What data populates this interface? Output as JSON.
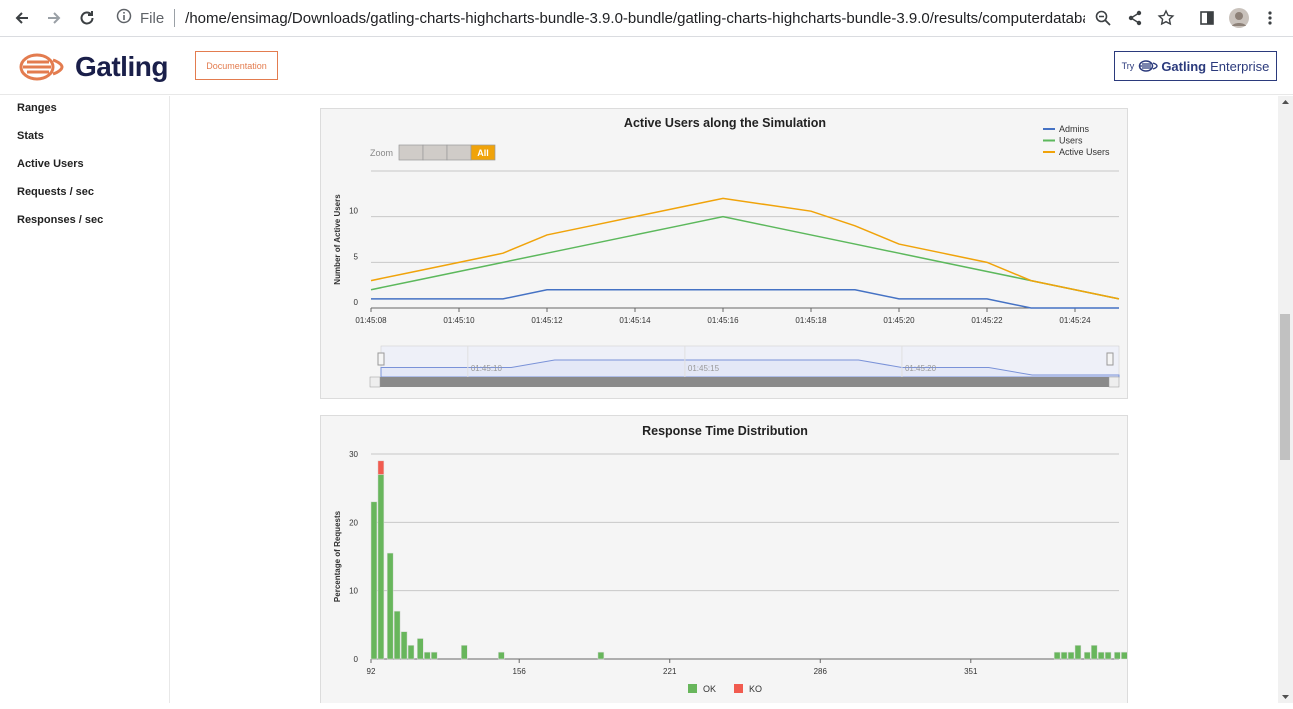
{
  "browser": {
    "file_label": "File",
    "url": "/home/ensimag/Downloads/gatling-charts-highcharts-bundle-3.9.0-bundle/gatling-charts-highcharts-bundle-3.9.0/results/computerdatabase…"
  },
  "header": {
    "logo_text": "Gatling",
    "documentation_label": "Documentation",
    "enterprise_try": "Try",
    "enterprise_brand": "Gatling",
    "enterprise_suffix": "Enterprise"
  },
  "sidebar": {
    "items": [
      {
        "label": "Ranges"
      },
      {
        "label": "Stats"
      },
      {
        "label": "Active Users"
      },
      {
        "label": "Requests / sec"
      },
      {
        "label": "Responses / sec"
      }
    ]
  },
  "zoom": {
    "label": "Zoom",
    "buttons": [
      "",
      "",
      "",
      "All"
    ]
  },
  "chart_data": [
    {
      "type": "line",
      "title": "Active Users along the Simulation",
      "ylabel": "Number of Active Users",
      "xlabel": "",
      "x": [
        "01:45:08",
        "01:45:09",
        "01:45:10",
        "01:45:11",
        "01:45:12",
        "01:45:13",
        "01:45:14",
        "01:45:15",
        "01:45:16",
        "01:45:17",
        "01:45:18",
        "01:45:19",
        "01:45:20",
        "01:45:21",
        "01:45:22",
        "01:45:23",
        "01:45:24",
        "01:45:25"
      ],
      "x_ticks": [
        "01:45:08",
        "01:45:10",
        "01:45:12",
        "01:45:14",
        "01:45:16",
        "01:45:18",
        "01:45:20",
        "01:45:22",
        "01:45:24"
      ],
      "y_ticks": [
        0,
        5,
        10
      ],
      "ylim": [
        0,
        15
      ],
      "series": [
        {
          "name": "Admins",
          "color": "#4572c4",
          "values": [
            1,
            1,
            1,
            1,
            2,
            2,
            2,
            2,
            2,
            2,
            2,
            2,
            1,
            1,
            1,
            0,
            0,
            0
          ]
        },
        {
          "name": "Users",
          "color": "#5cb85c",
          "values": [
            2,
            3,
            4,
            5,
            6,
            7,
            8,
            9,
            10,
            9,
            8,
            7,
            6,
            5,
            4,
            3,
            2,
            1
          ]
        },
        {
          "name": "Active Users",
          "color": "#f0a30a",
          "values": [
            3,
            4,
            5,
            6,
            8,
            9,
            10,
            11,
            12,
            11.3,
            10.6,
            9,
            7,
            6,
            5,
            3,
            2,
            1
          ]
        }
      ],
      "navigator_ticks": [
        "01:45:10",
        "01:45:15",
        "01:45:20"
      ],
      "legend": "top-right",
      "grid": true
    },
    {
      "type": "bar",
      "title": "Response Time Distribution",
      "ylabel": "Percentage of Requests",
      "x_ticks": [
        "92",
        "156",
        "221",
        "286",
        "351"
      ],
      "y_ticks": [
        0,
        10,
        20,
        30
      ],
      "ylim": [
        0,
        30
      ],
      "xlim": [
        92,
        415
      ],
      "series": [
        {
          "name": "OK",
          "color": "#68b65c"
        },
        {
          "name": "KO",
          "color": "#f15b4f"
        }
      ],
      "bars": [
        {
          "x": 92,
          "ok": 23,
          "ko": 0
        },
        {
          "x": 95,
          "ok": 27,
          "ko": 2
        },
        {
          "x": 99,
          "ok": 15.5,
          "ko": 0
        },
        {
          "x": 102,
          "ok": 7,
          "ko": 0
        },
        {
          "x": 105,
          "ok": 4,
          "ko": 0
        },
        {
          "x": 108,
          "ok": 2,
          "ko": 0
        },
        {
          "x": 112,
          "ok": 3,
          "ko": 0
        },
        {
          "x": 115,
          "ok": 1,
          "ko": 0
        },
        {
          "x": 118,
          "ok": 1,
          "ko": 0
        },
        {
          "x": 131,
          "ok": 2,
          "ko": 0
        },
        {
          "x": 147,
          "ok": 1,
          "ko": 0
        },
        {
          "x": 190,
          "ok": 1,
          "ko": 0
        },
        {
          "x": 387,
          "ok": 1,
          "ko": 0
        },
        {
          "x": 390,
          "ok": 1,
          "ko": 0
        },
        {
          "x": 393,
          "ok": 1,
          "ko": 0
        },
        {
          "x": 396,
          "ok": 2,
          "ko": 0
        },
        {
          "x": 400,
          "ok": 1,
          "ko": 0
        },
        {
          "x": 403,
          "ok": 2,
          "ko": 0
        },
        {
          "x": 406,
          "ok": 1,
          "ko": 0
        },
        {
          "x": 409,
          "ok": 1,
          "ko": 0
        },
        {
          "x": 413,
          "ok": 1,
          "ko": 0
        },
        {
          "x": 416,
          "ok": 1,
          "ko": 0
        }
      ],
      "legend": "bottom-center",
      "grid": true
    }
  ]
}
